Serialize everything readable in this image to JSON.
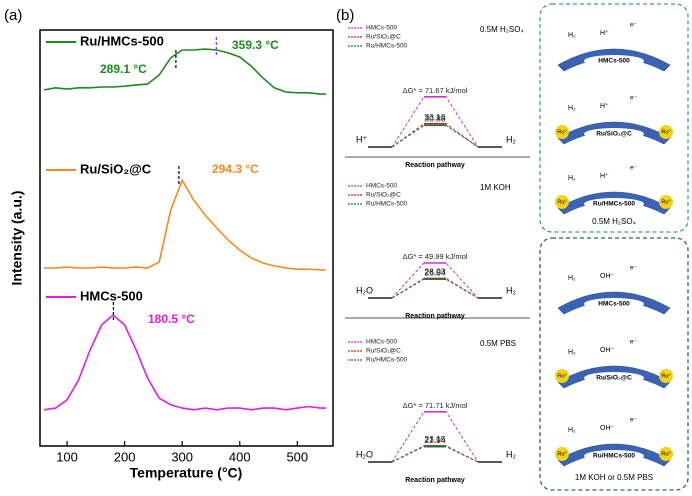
{
  "chart_data": [
    {
      "type": "line",
      "panel": "(a)",
      "xlabel": "Temperature (°C)",
      "ylabel": "Intensity (a.u.)",
      "xlim": [
        53,
        562
      ],
      "xticks": [
        100,
        200,
        300,
        400,
        500
      ],
      "ylim": [
        0,
        10
      ],
      "x": [
        60,
        80,
        100,
        120,
        140,
        160,
        180,
        200,
        220,
        240,
        260,
        280,
        300,
        320,
        340,
        360,
        380,
        400,
        420,
        440,
        460,
        480,
        500,
        520,
        540,
        550
      ],
      "series": [
        {
          "name": "Ru/HMCs-500",
          "color": "#1e8a1e",
          "values": [
            8.56,
            8.61,
            8.58,
            8.61,
            8.61,
            8.63,
            8.63,
            8.65,
            8.68,
            8.7,
            8.92,
            9.33,
            9.52,
            9.52,
            9.54,
            9.52,
            9.45,
            9.35,
            9.13,
            8.85,
            8.61,
            8.51,
            8.49,
            8.49,
            8.46,
            8.46
          ]
        },
        {
          "name": "Ru/SiO₂@C",
          "color": "#f08c1e",
          "values": [
            4.28,
            4.28,
            4.3,
            4.28,
            4.28,
            4.3,
            4.28,
            4.28,
            4.3,
            4.28,
            4.42,
            5.67,
            6.39,
            5.91,
            5.55,
            5.24,
            4.95,
            4.71,
            4.52,
            4.4,
            4.33,
            4.28,
            4.25,
            4.25,
            4.23,
            4.23
          ]
        },
        {
          "name": "HMCs-500",
          "color": "#e020e0",
          "values": [
            0.87,
            0.91,
            1.11,
            1.59,
            2.31,
            2.91,
            3.15,
            2.91,
            2.31,
            1.63,
            1.15,
            0.99,
            0.91,
            0.87,
            0.91,
            0.87,
            0.91,
            0.91,
            0.87,
            0.91,
            0.91,
            0.87,
            0.91,
            0.95,
            0.91,
            0.91
          ]
        }
      ],
      "annotations": [
        {
          "text": "289.1 °C",
          "x": 289.1,
          "color": "#1e8a1e"
        },
        {
          "text": "359.3 °C",
          "x": 359.3,
          "color": "#1e8a1e"
        },
        {
          "text": "294.3 °C",
          "x": 294.3,
          "color": "#f08c1e"
        },
        {
          "text": "180.5 °C",
          "x": 180.5,
          "color": "#e020e0"
        }
      ]
    },
    {
      "type": "energy",
      "panel": "(b)",
      "condition": "0.5M H₂SO₄",
      "reactant": "H⁺",
      "product": "H₂",
      "xlabel": "Reaction pathway",
      "ylim": [
        0,
        80
      ],
      "series": [
        {
          "name": "HMCs-500",
          "color": "#d030d0",
          "values": [
            71.67
          ],
          "value_labels": [
            "ΔG* = 71.67 kJ/mol"
          ]
        },
        {
          "name": "Ru/SiO₂@C",
          "color": "#d02828",
          "values": [
            33.16
          ],
          "value_labels": [
            "33.16"
          ]
        },
        {
          "name": "Ru/HMCs-500",
          "color": "#1e7a4a",
          "values": [
            30.88
          ],
          "value_labels": [
            "30.88"
          ]
        }
      ]
    },
    {
      "type": "energy",
      "condition": "1M KOH",
      "reactant": "H₂O",
      "product": "H₂",
      "xlabel": "Reaction pathway",
      "ylim": [
        0,
        80
      ],
      "series": [
        {
          "name": "HMCs-500",
          "color": "#d030d0",
          "values": [
            49.99
          ],
          "value_labels": [
            "ΔG* = 49.99 kJ/mol"
          ]
        },
        {
          "name": "Ru/SiO₂@C",
          "color": "#d02828",
          "values": [
            28.03
          ],
          "value_labels": [
            "28.03"
          ]
        },
        {
          "name": "Ru/HMCs-500",
          "color": "#1e7a4a",
          "values": [
            26.84
          ],
          "value_labels": [
            "26.84"
          ]
        }
      ]
    },
    {
      "type": "energy",
      "condition": "0.5M PBS",
      "reactant": "H₂O",
      "product": "H₂",
      "xlabel": "Reaction pathway",
      "ylim": [
        0,
        80
      ],
      "series": [
        {
          "name": "HMCs-500",
          "color": "#d030d0",
          "values": [
            71.71
          ],
          "value_labels": [
            "ΔG* = 71.71 kJ/mol"
          ]
        },
        {
          "name": "Ru/SiO₂@C",
          "color": "#d02828",
          "values": [
            23.15
          ],
          "value_labels": [
            "23.15"
          ]
        },
        {
          "name": "Ru/HMCs-500",
          "color": "#1e7a4a",
          "values": [
            21.94
          ],
          "value_labels": [
            "21.94"
          ]
        }
      ]
    }
  ],
  "schematic": {
    "acid": {
      "supports": [
        "HMCs-500",
        "Ru/SiO₂@C",
        "Ru/HMCs-500"
      ],
      "caption": "0.5M H₂SO₄",
      "ion": "H⁺"
    },
    "base": {
      "supports": [
        "HMCs-500",
        "Ru/SiO₂@C",
        "Ru/HMCs-500"
      ],
      "caption": "1M KOH or 0.5M PBS",
      "ion": "OH⁻"
    },
    "ru": "Ru⁰",
    "electron": "e⁻",
    "h2": "H₂"
  }
}
